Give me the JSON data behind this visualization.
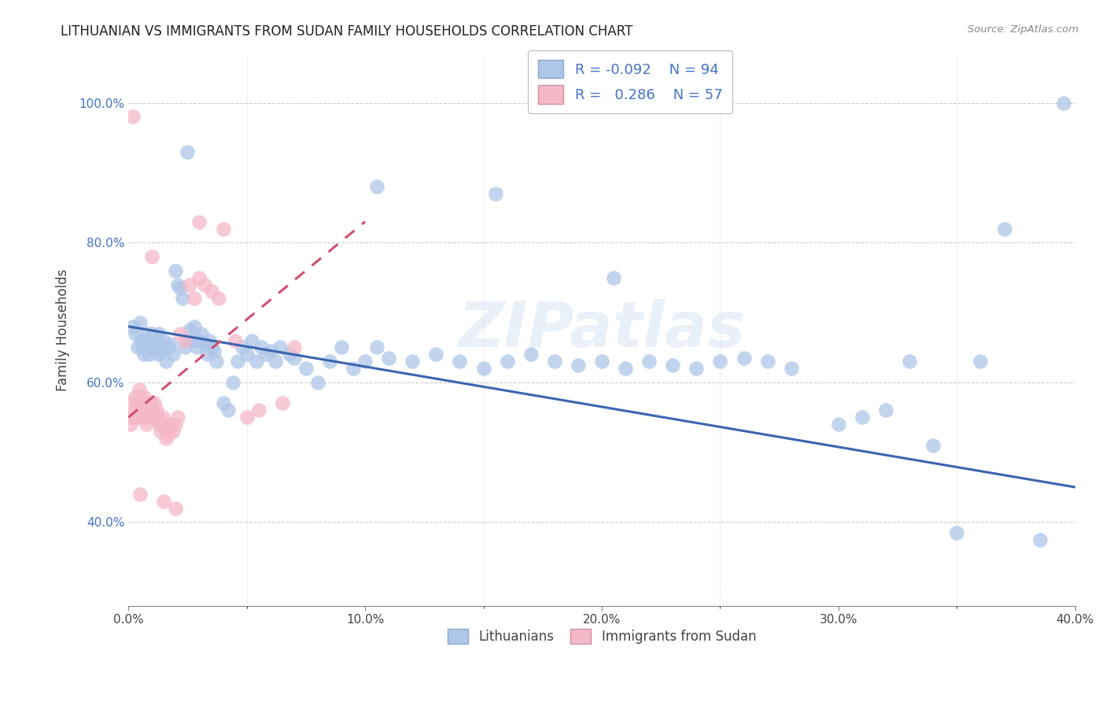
{
  "title": "LITHUANIAN VS IMMIGRANTS FROM SUDAN FAMILY HOUSEHOLDS CORRELATION CHART",
  "source": "Source: ZipAtlas.com",
  "ylabel": "Family Households",
  "x_tick_vals": [
    0.0,
    10.0,
    20.0,
    30.0,
    40.0
  ],
  "y_tick_vals": [
    40.0,
    60.0,
    80.0,
    100.0
  ],
  "xlim": [
    0.0,
    40.0
  ],
  "ylim": [
    28.0,
    107.0
  ],
  "legend_r_blue": "-0.092",
  "legend_n_blue": "94",
  "legend_r_pink": "0.286",
  "legend_n_pink": "57",
  "blue_color": "#aec6e8",
  "pink_color": "#f5b8c8",
  "blue_line_color": "#3a65b0",
  "pink_line_color": "#d05070",
  "watermark": "ZIPatlas",
  "blue_points": [
    [
      0.2,
      68.0
    ],
    [
      0.3,
      67.0
    ],
    [
      0.4,
      65.0
    ],
    [
      0.5,
      68.5
    ],
    [
      0.55,
      66.0
    ],
    [
      0.6,
      65.0
    ],
    [
      0.65,
      64.0
    ],
    [
      0.7,
      66.0
    ],
    [
      0.75,
      65.0
    ],
    [
      0.8,
      67.0
    ],
    [
      0.85,
      64.0
    ],
    [
      0.9,
      66.0
    ],
    [
      0.95,
      65.0
    ],
    [
      1.0,
      67.0
    ],
    [
      1.05,
      65.5
    ],
    [
      1.1,
      66.0
    ],
    [
      1.15,
      65.0
    ],
    [
      1.2,
      66.5
    ],
    [
      1.25,
      64.0
    ],
    [
      1.3,
      67.0
    ],
    [
      1.35,
      65.0
    ],
    [
      1.4,
      64.5
    ],
    [
      1.5,
      66.0
    ],
    [
      1.6,
      63.0
    ],
    [
      1.7,
      65.0
    ],
    [
      1.8,
      65.5
    ],
    [
      1.9,
      64.0
    ],
    [
      2.0,
      76.0
    ],
    [
      2.1,
      74.0
    ],
    [
      2.2,
      73.5
    ],
    [
      2.3,
      72.0
    ],
    [
      2.4,
      65.0
    ],
    [
      2.5,
      66.0
    ],
    [
      2.6,
      67.5
    ],
    [
      2.7,
      66.0
    ],
    [
      2.8,
      68.0
    ],
    [
      2.9,
      65.0
    ],
    [
      3.0,
      66.0
    ],
    [
      3.1,
      67.0
    ],
    [
      3.2,
      65.5
    ],
    [
      3.3,
      64.0
    ],
    [
      3.4,
      66.0
    ],
    [
      3.5,
      65.0
    ],
    [
      3.6,
      64.5
    ],
    [
      3.7,
      63.0
    ],
    [
      4.0,
      57.0
    ],
    [
      4.2,
      56.0
    ],
    [
      4.4,
      60.0
    ],
    [
      4.6,
      63.0
    ],
    [
      4.8,
      65.0
    ],
    [
      5.0,
      64.0
    ],
    [
      5.2,
      66.0
    ],
    [
      5.4,
      63.0
    ],
    [
      5.6,
      65.0
    ],
    [
      5.8,
      64.0
    ],
    [
      6.0,
      64.5
    ],
    [
      6.2,
      63.0
    ],
    [
      6.4,
      65.0
    ],
    [
      6.8,
      64.0
    ],
    [
      7.0,
      63.5
    ],
    [
      7.5,
      62.0
    ],
    [
      8.0,
      60.0
    ],
    [
      8.5,
      63.0
    ],
    [
      9.0,
      65.0
    ],
    [
      9.5,
      62.0
    ],
    [
      10.0,
      63.0
    ],
    [
      10.5,
      65.0
    ],
    [
      11.0,
      63.5
    ],
    [
      12.0,
      63.0
    ],
    [
      13.0,
      64.0
    ],
    [
      14.0,
      63.0
    ],
    [
      15.0,
      62.0
    ],
    [
      16.0,
      63.0
    ],
    [
      17.0,
      64.0
    ],
    [
      18.0,
      63.0
    ],
    [
      19.0,
      62.5
    ],
    [
      20.0,
      63.0
    ],
    [
      21.0,
      62.0
    ],
    [
      22.0,
      63.0
    ],
    [
      23.0,
      62.5
    ],
    [
      24.0,
      62.0
    ],
    [
      25.0,
      63.0
    ],
    [
      26.0,
      63.5
    ],
    [
      27.0,
      63.0
    ],
    [
      28.0,
      62.0
    ],
    [
      30.0,
      54.0
    ],
    [
      31.0,
      55.0
    ],
    [
      32.0,
      56.0
    ],
    [
      33.0,
      63.0
    ],
    [
      34.0,
      51.0
    ],
    [
      35.0,
      38.5
    ],
    [
      36.0,
      63.0
    ],
    [
      37.0,
      82.0
    ],
    [
      38.5,
      37.5
    ],
    [
      39.5,
      100.0
    ],
    [
      10.5,
      88.0
    ],
    [
      2.5,
      93.0
    ],
    [
      15.5,
      87.0
    ],
    [
      20.5,
      75.0
    ]
  ],
  "pink_points": [
    [
      0.1,
      54.0
    ],
    [
      0.15,
      55.0
    ],
    [
      0.2,
      57.0
    ],
    [
      0.25,
      56.0
    ],
    [
      0.3,
      58.0
    ],
    [
      0.35,
      55.0
    ],
    [
      0.4,
      57.0
    ],
    [
      0.45,
      59.0
    ],
    [
      0.5,
      55.0
    ],
    [
      0.55,
      57.0
    ],
    [
      0.6,
      56.0
    ],
    [
      0.65,
      58.0
    ],
    [
      0.7,
      55.0
    ],
    [
      0.75,
      54.0
    ],
    [
      0.8,
      57.0
    ],
    [
      0.85,
      56.0
    ],
    [
      0.9,
      55.0
    ],
    [
      0.95,
      57.0
    ],
    [
      1.0,
      56.0
    ],
    [
      1.05,
      55.0
    ],
    [
      1.1,
      57.0
    ],
    [
      1.15,
      55.5
    ],
    [
      1.2,
      56.0
    ],
    [
      1.25,
      55.0
    ],
    [
      1.3,
      54.0
    ],
    [
      1.35,
      53.0
    ],
    [
      1.4,
      54.0
    ],
    [
      1.45,
      55.0
    ],
    [
      1.5,
      54.0
    ],
    [
      1.55,
      53.5
    ],
    [
      1.6,
      52.0
    ],
    [
      1.65,
      53.0
    ],
    [
      1.7,
      52.5
    ],
    [
      1.8,
      54.0
    ],
    [
      1.9,
      53.0
    ],
    [
      2.0,
      54.0
    ],
    [
      2.1,
      55.0
    ],
    [
      2.2,
      67.0
    ],
    [
      2.4,
      66.0
    ],
    [
      2.6,
      74.0
    ],
    [
      2.8,
      72.0
    ],
    [
      3.0,
      75.0
    ],
    [
      3.2,
      74.0
    ],
    [
      3.5,
      73.0
    ],
    [
      3.8,
      72.0
    ],
    [
      4.0,
      82.0
    ],
    [
      4.5,
      66.0
    ],
    [
      5.0,
      55.0
    ],
    [
      5.5,
      56.0
    ],
    [
      6.5,
      57.0
    ],
    [
      7.0,
      65.0
    ],
    [
      0.5,
      44.0
    ],
    [
      1.5,
      43.0
    ],
    [
      2.0,
      42.0
    ],
    [
      0.2,
      98.0
    ],
    [
      3.0,
      83.0
    ],
    [
      1.0,
      78.0
    ]
  ]
}
